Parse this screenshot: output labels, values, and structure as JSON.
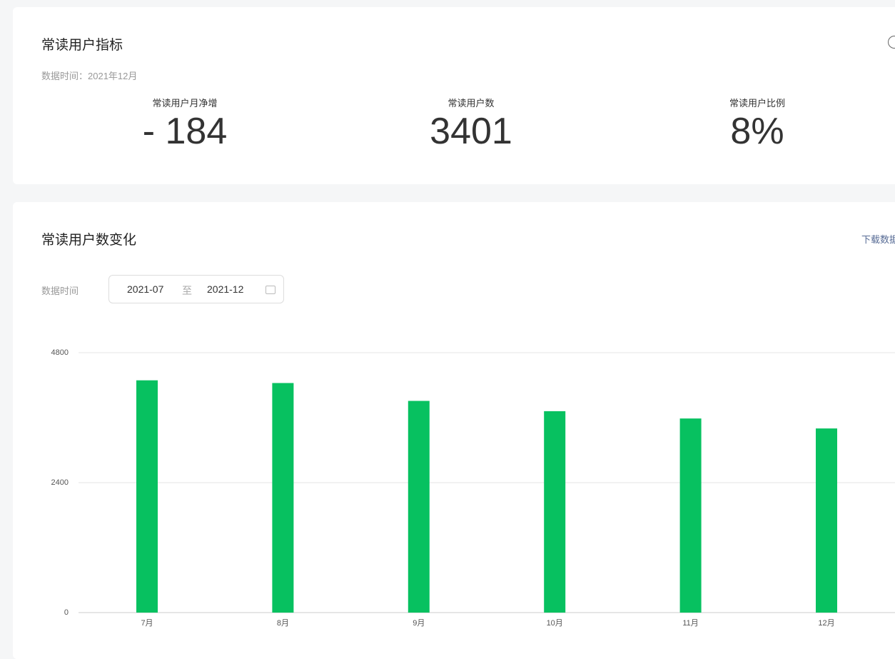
{
  "metrics_card": {
    "title": "常读用户指标",
    "data_time": "数据时间：2021年12月",
    "metrics": [
      {
        "label": "常读用户月净增",
        "value": "- 184"
      },
      {
        "label": "常读用户数",
        "value": "3401"
      },
      {
        "label": "常读用户比例",
        "value": "8%"
      }
    ]
  },
  "trend_card": {
    "title": "常读用户数变化",
    "download": "下载数据",
    "range_label": "数据时间",
    "range_start": "2021-07",
    "range_sep": "至",
    "range_end": "2021-12"
  },
  "chart_data": {
    "type": "bar",
    "categories": [
      "7月",
      "8月",
      "9月",
      "10月",
      "11月",
      "12月"
    ],
    "values": [
      4290,
      4240,
      3910,
      3720,
      3585,
      3401
    ],
    "color": "#07c160",
    "ylim": [
      0,
      4800
    ],
    "yticks": [
      0,
      2400,
      4800
    ],
    "grid": true
  }
}
